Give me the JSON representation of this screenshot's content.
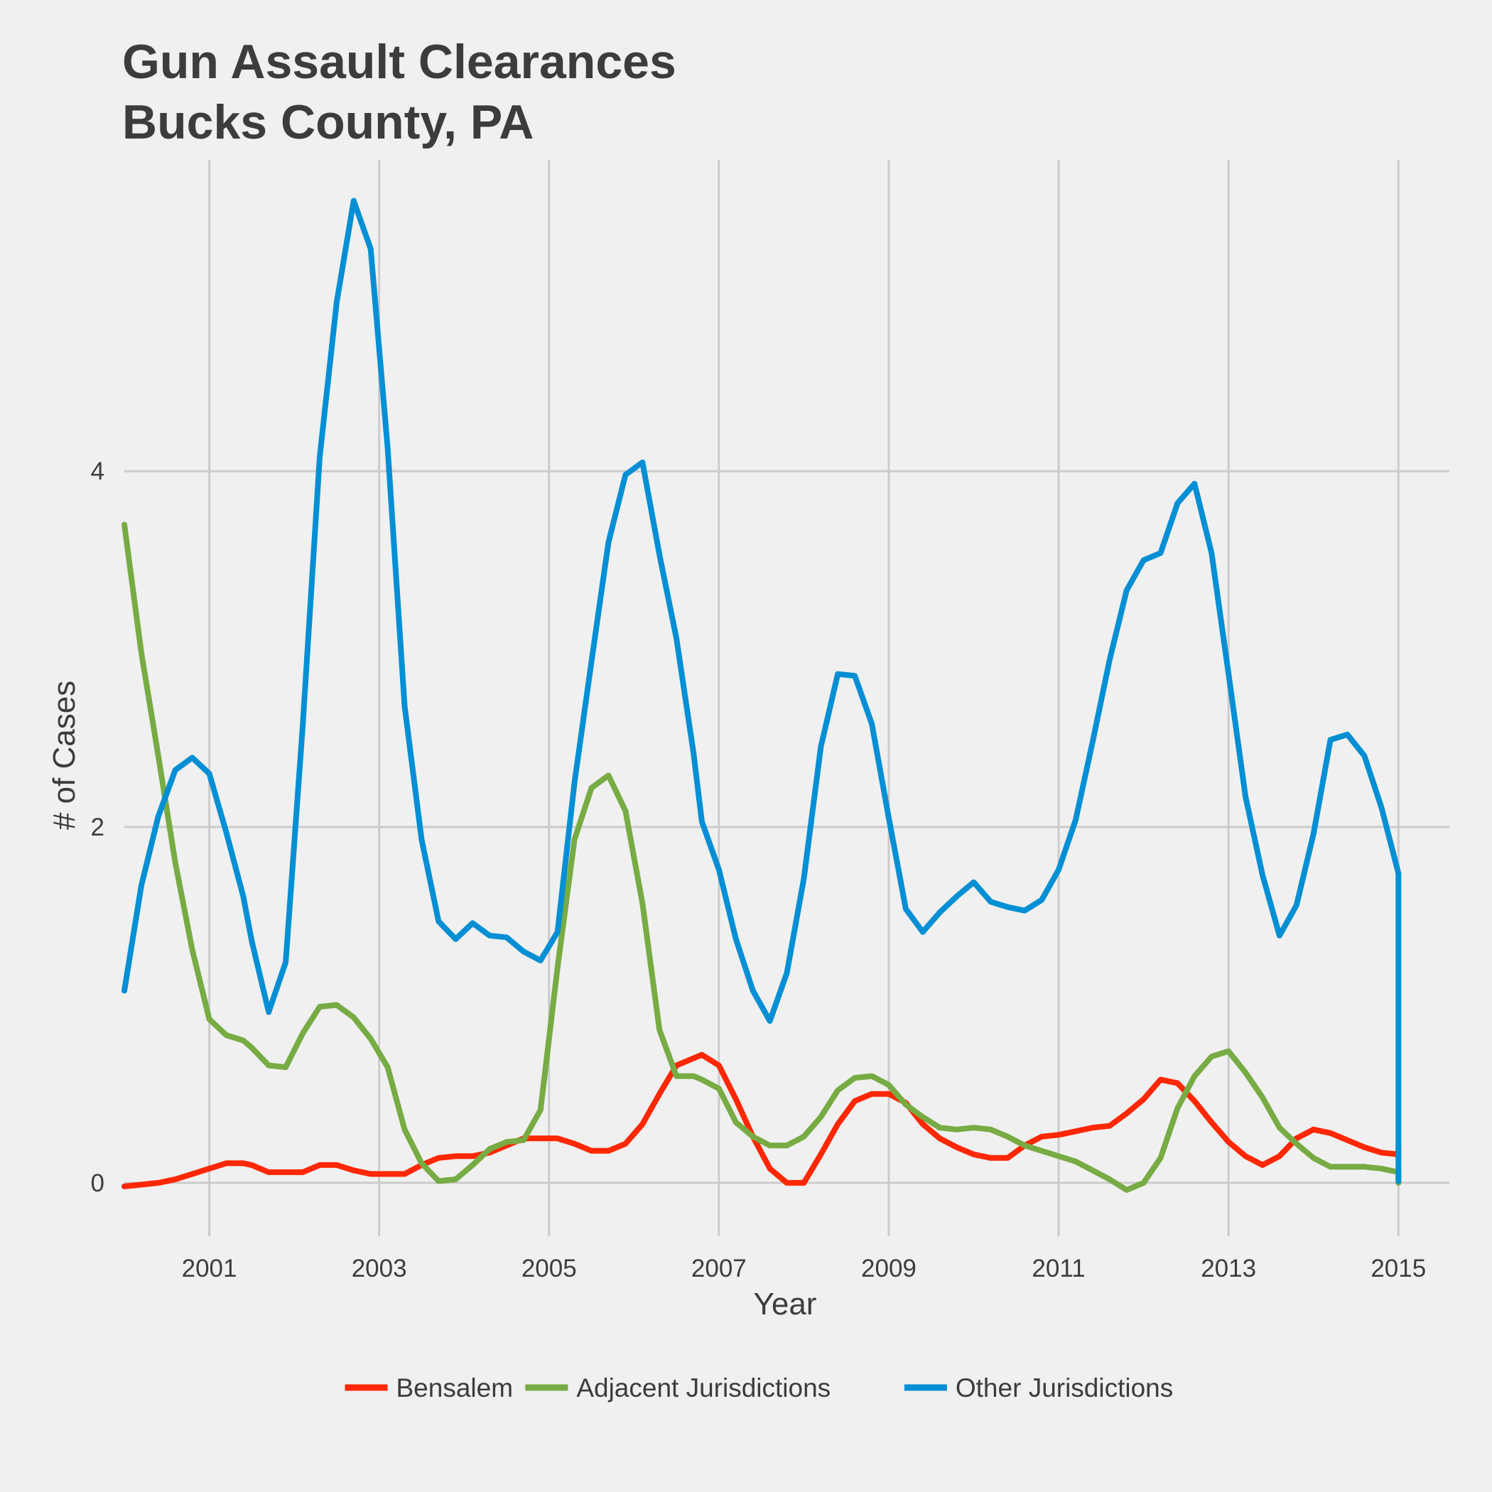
{
  "chart_data": {
    "type": "line",
    "title_lines": [
      "Gun Assault Clearances",
      "Bucks County, PA"
    ],
    "xlabel": "Year",
    "ylabel": "# of Cases",
    "xlim": [
      2000,
      2015.6
    ],
    "ylim": [
      -0.3,
      5.75
    ],
    "x_ticks": [
      2001,
      2003,
      2005,
      2007,
      2009,
      2011,
      2013,
      2015
    ],
    "y_ticks": [
      0,
      2,
      4
    ],
    "grid": true,
    "legend_position": "bottom",
    "series": [
      {
        "name": "Bensalem",
        "color": "#ff2700",
        "points": [
          [
            2000.0,
            -0.02
          ],
          [
            2000.2,
            -0.01
          ],
          [
            2000.4,
            0.0
          ],
          [
            2000.6,
            0.02
          ],
          [
            2000.8,
            0.05
          ],
          [
            2001.0,
            0.08
          ],
          [
            2001.2,
            0.11
          ],
          [
            2001.4,
            0.11
          ],
          [
            2001.5,
            0.1
          ],
          [
            2001.7,
            0.06
          ],
          [
            2001.9,
            0.06
          ],
          [
            2002.1,
            0.06
          ],
          [
            2002.3,
            0.1
          ],
          [
            2002.5,
            0.1
          ],
          [
            2002.7,
            0.07
          ],
          [
            2002.9,
            0.05
          ],
          [
            2003.1,
            0.05
          ],
          [
            2003.3,
            0.05
          ],
          [
            2003.5,
            0.1
          ],
          [
            2003.7,
            0.14
          ],
          [
            2003.9,
            0.15
          ],
          [
            2004.1,
            0.15
          ],
          [
            2004.3,
            0.17
          ],
          [
            2004.5,
            0.21
          ],
          [
            2004.7,
            0.25
          ],
          [
            2004.9,
            0.25
          ],
          [
            2005.1,
            0.25
          ],
          [
            2005.3,
            0.22
          ],
          [
            2005.5,
            0.18
          ],
          [
            2005.7,
            0.18
          ],
          [
            2005.9,
            0.22
          ],
          [
            2006.1,
            0.33
          ],
          [
            2006.3,
            0.5
          ],
          [
            2006.5,
            0.66
          ],
          [
            2006.7,
            0.7
          ],
          [
            2006.8,
            0.72
          ],
          [
            2007.0,
            0.66
          ],
          [
            2007.2,
            0.47
          ],
          [
            2007.4,
            0.26
          ],
          [
            2007.6,
            0.08
          ],
          [
            2007.8,
            0.0
          ],
          [
            2008.0,
            0.0
          ],
          [
            2008.2,
            0.16
          ],
          [
            2008.4,
            0.33
          ],
          [
            2008.6,
            0.46
          ],
          [
            2008.8,
            0.5
          ],
          [
            2009.0,
            0.5
          ],
          [
            2009.2,
            0.45
          ],
          [
            2009.4,
            0.33
          ],
          [
            2009.6,
            0.25
          ],
          [
            2009.8,
            0.2
          ],
          [
            2010.0,
            0.16
          ],
          [
            2010.2,
            0.14
          ],
          [
            2010.4,
            0.14
          ],
          [
            2010.6,
            0.21
          ],
          [
            2010.8,
            0.26
          ],
          [
            2011.0,
            0.27
          ],
          [
            2011.2,
            0.29
          ],
          [
            2011.4,
            0.31
          ],
          [
            2011.6,
            0.32
          ],
          [
            2011.8,
            0.39
          ],
          [
            2012.0,
            0.47
          ],
          [
            2012.2,
            0.58
          ],
          [
            2012.4,
            0.56
          ],
          [
            2012.6,
            0.46
          ],
          [
            2012.8,
            0.34
          ],
          [
            2013.0,
            0.23
          ],
          [
            2013.2,
            0.15
          ],
          [
            2013.4,
            0.1
          ],
          [
            2013.6,
            0.15
          ],
          [
            2013.8,
            0.25
          ],
          [
            2014.0,
            0.3
          ],
          [
            2014.2,
            0.28
          ],
          [
            2014.4,
            0.24
          ],
          [
            2014.6,
            0.2
          ],
          [
            2014.8,
            0.17
          ],
          [
            2015.0,
            0.16
          ],
          [
            2015.0,
            0.2
          ]
        ]
      },
      {
        "name": "Adjacent Jurisdictions",
        "color": "#77ab43",
        "points": [
          [
            2000.0,
            3.7
          ],
          [
            2000.2,
            2.98
          ],
          [
            2000.4,
            2.4
          ],
          [
            2000.6,
            1.8
          ],
          [
            2000.8,
            1.31
          ],
          [
            2001.0,
            0.92
          ],
          [
            2001.2,
            0.83
          ],
          [
            2001.4,
            0.8
          ],
          [
            2001.5,
            0.76
          ],
          [
            2001.7,
            0.66
          ],
          [
            2001.9,
            0.65
          ],
          [
            2002.1,
            0.84
          ],
          [
            2002.3,
            0.99
          ],
          [
            2002.5,
            1.0
          ],
          [
            2002.7,
            0.93
          ],
          [
            2002.9,
            0.81
          ],
          [
            2003.1,
            0.65
          ],
          [
            2003.3,
            0.3
          ],
          [
            2003.5,
            0.11
          ],
          [
            2003.7,
            0.01
          ],
          [
            2003.9,
            0.02
          ],
          [
            2004.1,
            0.1
          ],
          [
            2004.3,
            0.19
          ],
          [
            2004.5,
            0.23
          ],
          [
            2004.7,
            0.24
          ],
          [
            2004.9,
            0.41
          ],
          [
            2005.1,
            1.21
          ],
          [
            2005.3,
            1.93
          ],
          [
            2005.5,
            2.22
          ],
          [
            2005.7,
            2.29
          ],
          [
            2005.9,
            2.09
          ],
          [
            2006.1,
            1.57
          ],
          [
            2006.3,
            0.86
          ],
          [
            2006.5,
            0.6
          ],
          [
            2006.7,
            0.6
          ],
          [
            2006.8,
            0.58
          ],
          [
            2007.0,
            0.53
          ],
          [
            2007.2,
            0.34
          ],
          [
            2007.4,
            0.26
          ],
          [
            2007.6,
            0.21
          ],
          [
            2007.8,
            0.21
          ],
          [
            2008.0,
            0.26
          ],
          [
            2008.2,
            0.37
          ],
          [
            2008.4,
            0.52
          ],
          [
            2008.6,
            0.59
          ],
          [
            2008.8,
            0.6
          ],
          [
            2009.0,
            0.55
          ],
          [
            2009.2,
            0.44
          ],
          [
            2009.4,
            0.37
          ],
          [
            2009.6,
            0.31
          ],
          [
            2009.8,
            0.3
          ],
          [
            2010.0,
            0.31
          ],
          [
            2010.2,
            0.3
          ],
          [
            2010.4,
            0.26
          ],
          [
            2010.6,
            0.21
          ],
          [
            2010.8,
            0.18
          ],
          [
            2011.0,
            0.15
          ],
          [
            2011.2,
            0.12
          ],
          [
            2011.4,
            0.07
          ],
          [
            2011.6,
            0.02
          ],
          [
            2011.8,
            -0.04
          ],
          [
            2012.0,
            0.0
          ],
          [
            2012.2,
            0.14
          ],
          [
            2012.4,
            0.42
          ],
          [
            2012.6,
            0.6
          ],
          [
            2012.8,
            0.71
          ],
          [
            2013.0,
            0.74
          ],
          [
            2013.2,
            0.62
          ],
          [
            2013.4,
            0.48
          ],
          [
            2013.6,
            0.31
          ],
          [
            2013.8,
            0.22
          ],
          [
            2014.0,
            0.14
          ],
          [
            2014.2,
            0.09
          ],
          [
            2014.4,
            0.09
          ],
          [
            2014.6,
            0.09
          ],
          [
            2014.8,
            0.08
          ],
          [
            2015.0,
            0.06
          ],
          [
            2015.0,
            0.0
          ]
        ]
      },
      {
        "name": "Other Jurisdictions",
        "color": "#008fd5",
        "points": [
          [
            2000.0,
            1.08
          ],
          [
            2000.2,
            1.67
          ],
          [
            2000.4,
            2.06
          ],
          [
            2000.6,
            2.32
          ],
          [
            2000.8,
            2.39
          ],
          [
            2001.0,
            2.3
          ],
          [
            2001.2,
            1.97
          ],
          [
            2001.4,
            1.61
          ],
          [
            2001.5,
            1.36
          ],
          [
            2001.7,
            0.96
          ],
          [
            2001.9,
            1.24
          ],
          [
            2002.1,
            2.57
          ],
          [
            2002.3,
            4.08
          ],
          [
            2002.5,
            4.95
          ],
          [
            2002.7,
            5.52
          ],
          [
            2002.9,
            5.25
          ],
          [
            2003.1,
            4.13
          ],
          [
            2003.3,
            2.68
          ],
          [
            2003.5,
            1.93
          ],
          [
            2003.7,
            1.47
          ],
          [
            2003.9,
            1.37
          ],
          [
            2004.1,
            1.46
          ],
          [
            2004.3,
            1.39
          ],
          [
            2004.5,
            1.38
          ],
          [
            2004.7,
            1.3
          ],
          [
            2004.9,
            1.25
          ],
          [
            2005.1,
            1.41
          ],
          [
            2005.3,
            2.25
          ],
          [
            2005.5,
            2.93
          ],
          [
            2005.7,
            3.6
          ],
          [
            2005.9,
            3.98
          ],
          [
            2006.1,
            4.05
          ],
          [
            2006.3,
            3.53
          ],
          [
            2006.5,
            3.06
          ],
          [
            2006.7,
            2.42
          ],
          [
            2006.8,
            2.03
          ],
          [
            2007.0,
            1.76
          ],
          [
            2007.2,
            1.37
          ],
          [
            2007.4,
            1.08
          ],
          [
            2007.6,
            0.91
          ],
          [
            2007.8,
            1.18
          ],
          [
            2008.0,
            1.71
          ],
          [
            2008.2,
            2.45
          ],
          [
            2008.4,
            2.86
          ],
          [
            2008.6,
            2.85
          ],
          [
            2008.8,
            2.58
          ],
          [
            2009.0,
            2.05
          ],
          [
            2009.2,
            1.54
          ],
          [
            2009.4,
            1.41
          ],
          [
            2009.6,
            1.52
          ],
          [
            2009.8,
            1.61
          ],
          [
            2010.0,
            1.69
          ],
          [
            2010.2,
            1.58
          ],
          [
            2010.4,
            1.55
          ],
          [
            2010.6,
            1.53
          ],
          [
            2010.8,
            1.59
          ],
          [
            2011.0,
            1.76
          ],
          [
            2011.2,
            2.04
          ],
          [
            2011.4,
            2.48
          ],
          [
            2011.6,
            2.94
          ],
          [
            2011.8,
            3.33
          ],
          [
            2012.0,
            3.5
          ],
          [
            2012.2,
            3.54
          ],
          [
            2012.4,
            3.82
          ],
          [
            2012.6,
            3.93
          ],
          [
            2012.8,
            3.54
          ],
          [
            2013.0,
            2.86
          ],
          [
            2013.2,
            2.17
          ],
          [
            2013.4,
            1.73
          ],
          [
            2013.6,
            1.39
          ],
          [
            2013.8,
            1.56
          ],
          [
            2014.0,
            1.96
          ],
          [
            2014.2,
            2.49
          ],
          [
            2014.4,
            2.52
          ],
          [
            2014.6,
            2.4
          ],
          [
            2014.8,
            2.11
          ],
          [
            2015.0,
            1.74
          ],
          [
            2015.0,
            0.01
          ]
        ]
      }
    ]
  }
}
